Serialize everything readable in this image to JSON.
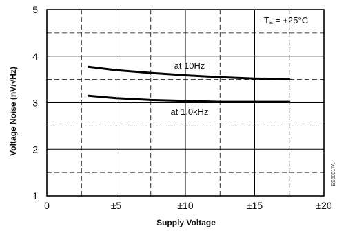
{
  "chart_data": {
    "type": "line",
    "xlabel": "Supply Voltage",
    "ylabel": "Voltage Noise (nV/√Hz)",
    "xlim": [
      0,
      20
    ],
    "ylim": [
      1,
      5
    ],
    "x_ticks": [
      0,
      5,
      10,
      15,
      20
    ],
    "x_tick_labels": [
      "0",
      "±5",
      "±10",
      "±15",
      "±20"
    ],
    "y_ticks": [
      1,
      2,
      3,
      4,
      5
    ],
    "y_tick_labels": [
      "1",
      "2",
      "3",
      "4",
      "5"
    ],
    "grid": true,
    "series": [
      {
        "label": "at 10Hz",
        "x": [
          3,
          5,
          7.5,
          10,
          12.5,
          15,
          17.5
        ],
        "y": [
          3.77,
          3.7,
          3.64,
          3.59,
          3.55,
          3.52,
          3.51
        ]
      },
      {
        "label": "at 1.0kHz",
        "x": [
          3,
          5,
          7.5,
          10,
          12.5,
          15,
          17.5
        ],
        "y": [
          3.15,
          3.1,
          3.06,
          3.04,
          3.02,
          3.02,
          3.02
        ]
      }
    ],
    "annotations": {
      "ta": "Tₐ = +25°C",
      "side_code": "ES00017A"
    }
  }
}
